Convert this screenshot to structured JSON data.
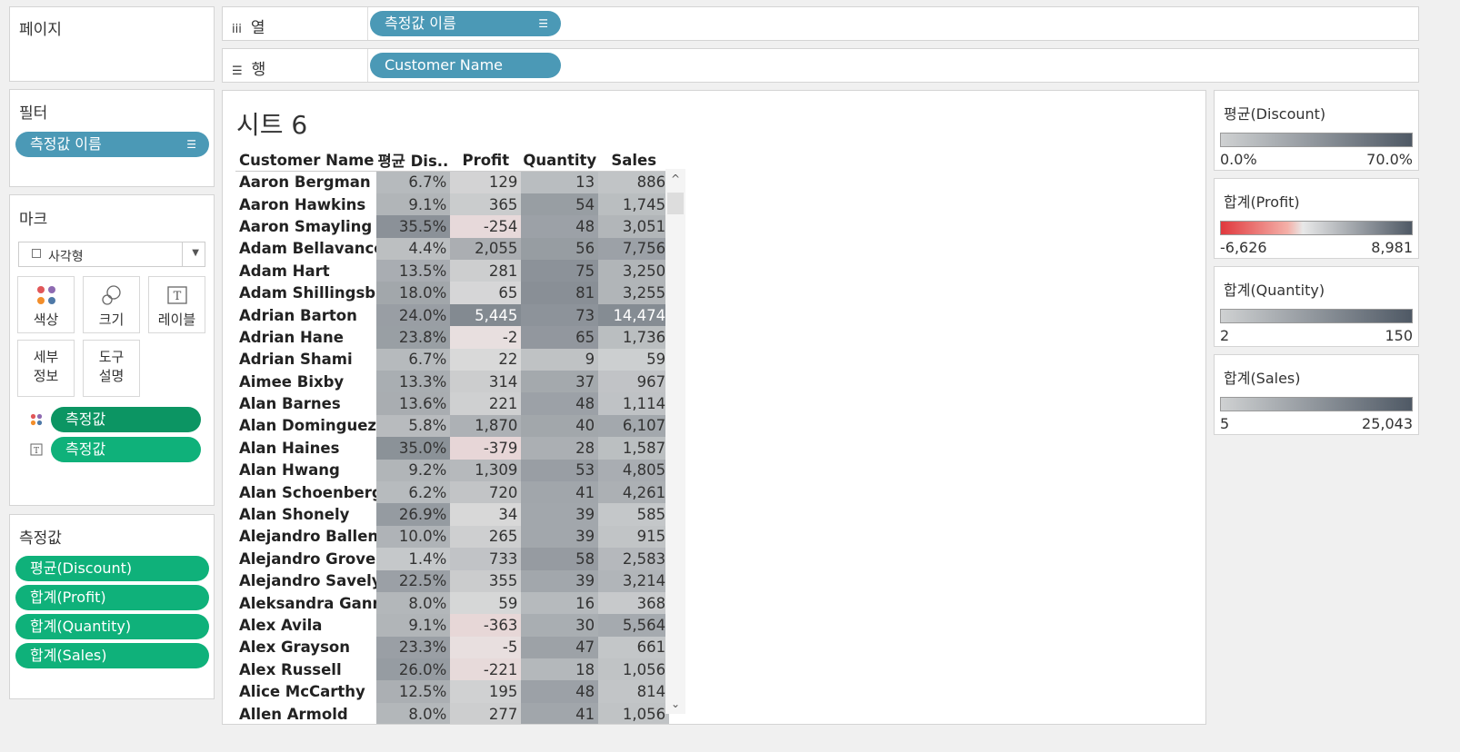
{
  "pages_panel": {
    "title": "페이지"
  },
  "columns_shelf": {
    "label": "열",
    "pill": "측정값 이름"
  },
  "rows_shelf": {
    "label": "행",
    "pill": "Customer Name"
  },
  "filters_panel": {
    "title": "필터",
    "pill": "측정값 이름"
  },
  "marks_panel": {
    "title": "마크",
    "mark_type": "사각형",
    "buttons": {
      "color": "색상",
      "size": "크기",
      "label": "레이블",
      "detail": "세부\n정보",
      "tooltip": "도구\n설명"
    },
    "color_pill": "측정값",
    "label_pill": "측정값"
  },
  "measures_panel": {
    "title": "측정값",
    "items": [
      "평균(Discount)",
      "합계(Profit)",
      "합계(Quantity)",
      "합계(Sales)"
    ]
  },
  "sheet": {
    "title": "시트 6",
    "headers": [
      "Customer Name",
      "평균 Dis..",
      "Profit",
      "Quantity",
      "Sales"
    ],
    "rows": [
      {
        "name": "Aaron Bergman",
        "discount": 6.7,
        "profit": 129,
        "quantity": 13,
        "sales": 886
      },
      {
        "name": "Aaron Hawkins",
        "discount": 9.1,
        "profit": 365,
        "quantity": 54,
        "sales": 1745
      },
      {
        "name": "Aaron Smayling",
        "discount": 35.5,
        "profit": -254,
        "quantity": 48,
        "sales": 3051
      },
      {
        "name": "Adam Bellavance",
        "discount": 4.4,
        "profit": 2055,
        "quantity": 56,
        "sales": 7756
      },
      {
        "name": "Adam Hart",
        "discount": 13.5,
        "profit": 281,
        "quantity": 75,
        "sales": 3250
      },
      {
        "name": "Adam Shillingsb..",
        "discount": 18.0,
        "profit": 65,
        "quantity": 81,
        "sales": 3255
      },
      {
        "name": "Adrian Barton",
        "discount": 24.0,
        "profit": 5445,
        "quantity": 73,
        "sales": 14474
      },
      {
        "name": "Adrian Hane",
        "discount": 23.8,
        "profit": -2,
        "quantity": 65,
        "sales": 1736
      },
      {
        "name": "Adrian Shami",
        "discount": 6.7,
        "profit": 22,
        "quantity": 9,
        "sales": 59
      },
      {
        "name": "Aimee Bixby",
        "discount": 13.3,
        "profit": 314,
        "quantity": 37,
        "sales": 967
      },
      {
        "name": "Alan Barnes",
        "discount": 13.6,
        "profit": 221,
        "quantity": 48,
        "sales": 1114
      },
      {
        "name": "Alan Dominguez",
        "discount": 5.8,
        "profit": 1870,
        "quantity": 40,
        "sales": 6107
      },
      {
        "name": "Alan Haines",
        "discount": 35.0,
        "profit": -379,
        "quantity": 28,
        "sales": 1587
      },
      {
        "name": "Alan Hwang",
        "discount": 9.2,
        "profit": 1309,
        "quantity": 53,
        "sales": 4805
      },
      {
        "name": "Alan Schoenberg..",
        "discount": 6.2,
        "profit": 720,
        "quantity": 41,
        "sales": 4261
      },
      {
        "name": "Alan Shonely",
        "discount": 26.9,
        "profit": 34,
        "quantity": 39,
        "sales": 585
      },
      {
        "name": "Alejandro Ballen..",
        "discount": 10.0,
        "profit": 265,
        "quantity": 39,
        "sales": 915
      },
      {
        "name": "Alejandro Grove",
        "discount": 1.4,
        "profit": 733,
        "quantity": 58,
        "sales": 2583
      },
      {
        "name": "Alejandro Savely",
        "discount": 22.5,
        "profit": 355,
        "quantity": 39,
        "sales": 3214
      },
      {
        "name": "Aleksandra Gann..",
        "discount": 8.0,
        "profit": 59,
        "quantity": 16,
        "sales": 368
      },
      {
        "name": "Alex Avila",
        "discount": 9.1,
        "profit": -363,
        "quantity": 30,
        "sales": 5564
      },
      {
        "name": "Alex Grayson",
        "discount": 23.3,
        "profit": -5,
        "quantity": 47,
        "sales": 661
      },
      {
        "name": "Alex Russell",
        "discount": 26.0,
        "profit": -221,
        "quantity": 18,
        "sales": 1056
      },
      {
        "name": "Alice McCarthy",
        "discount": 12.5,
        "profit": 195,
        "quantity": 48,
        "sales": 814
      },
      {
        "name": "Allen Armold",
        "discount": 8.0,
        "profit": 277,
        "quantity": 41,
        "sales": 1056
      }
    ]
  },
  "legends": [
    {
      "title": "평균(Discount)",
      "min": "0.0%",
      "max": "70.0%",
      "min_val": 0,
      "max_val": 70,
      "type": "grey"
    },
    {
      "title": "합계(Profit)",
      "min": "-6,626",
      "max": "8,981",
      "min_val": -6626,
      "max_val": 8981,
      "type": "diverging"
    },
    {
      "title": "합계(Quantity)",
      "min": "2",
      "max": "150",
      "min_val": 2,
      "max_val": 150,
      "type": "grey"
    },
    {
      "title": "합계(Sales)",
      "min": "5",
      "max": "25,043",
      "min_val": 5,
      "max_val": 25043,
      "type": "grey"
    }
  ],
  "colors": {
    "grey_low": "#cfd1d2",
    "grey_high": "#4f5965",
    "red_high": "#e0393e",
    "pill_blue": "#4b99b6",
    "pill_green": "#0fb17a"
  }
}
